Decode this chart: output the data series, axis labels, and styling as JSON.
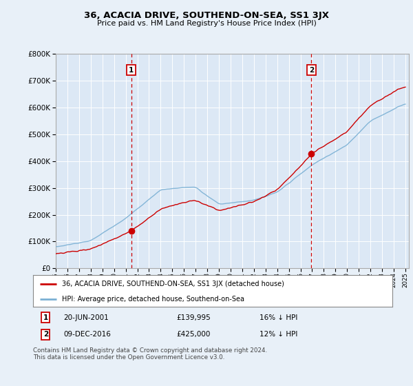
{
  "title": "36, ACACIA DRIVE, SOUTHEND-ON-SEA, SS1 3JX",
  "subtitle": "Price paid vs. HM Land Registry's House Price Index (HPI)",
  "legend_label_red": "36, ACACIA DRIVE, SOUTHEND-ON-SEA, SS1 3JX (detached house)",
  "legend_label_blue": "HPI: Average price, detached house, Southend-on-Sea",
  "transaction1_date": "20-JUN-2001",
  "transaction1_price": "£139,995",
  "transaction1_hpi": "16% ↓ HPI",
  "transaction2_date": "09-DEC-2016",
  "transaction2_price": "£425,000",
  "transaction2_hpi": "12% ↓ HPI",
  "footer": "Contains HM Land Registry data © Crown copyright and database right 2024.\nThis data is licensed under the Open Government Licence v3.0.",
  "bg_color": "#e8f0f8",
  "plot_bg_color": "#dce8f5",
  "red_color": "#cc0000",
  "blue_color": "#7ab0d4",
  "grid_color": "#ffffff",
  "dashed_color": "#cc0000",
  "ylim": [
    0,
    800000
  ],
  "yticks": [
    0,
    100000,
    200000,
    300000,
    400000,
    500000,
    600000,
    700000,
    800000
  ],
  "x_start_year": 1995,
  "x_end_year": 2025,
  "transaction1_year": 2001.47,
  "transaction2_year": 2016.94,
  "transaction1_price_val": 139995,
  "transaction2_price_val": 425000
}
